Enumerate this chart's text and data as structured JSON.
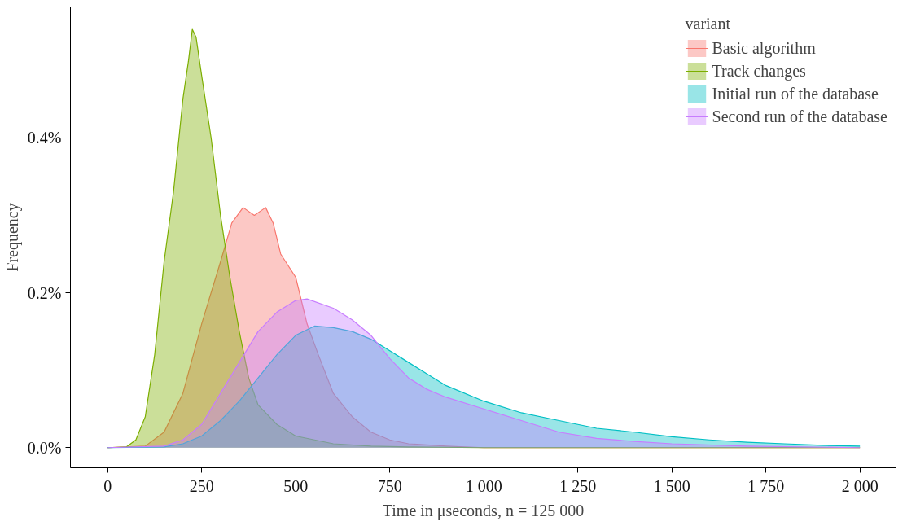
{
  "chart_data": {
    "type": "area",
    "xlabel": "Time in μseconds, n = 125 000",
    "ylabel": "Frequency",
    "legend_title": "variant",
    "legend": "top right",
    "grid": false,
    "xlim": [
      -99,
      2096
    ],
    "ylim": [
      -0.026,
      0.569
    ],
    "xticks": [
      0,
      250,
      500,
      750,
      {
        "value": 1000,
        "label": "1 000"
      },
      {
        "value": 1250,
        "label": "1 250"
      },
      {
        "value": 1500,
        "label": "1 500"
      },
      {
        "value": 1750,
        "label": "1 750"
      },
      {
        "value": 2000,
        "label": "2 000"
      }
    ],
    "yticks": [
      {
        "value": 0,
        "label": "0.0%"
      },
      {
        "value": 0.2,
        "label": "0.2%"
      },
      {
        "value": 0.4,
        "label": "0.4%"
      }
    ],
    "series": [
      {
        "name": "Basic algorithm",
        "color": "#f8766d",
        "x": [
          0,
          100,
          150,
          200,
          250,
          300,
          330,
          360,
          390,
          420,
          440,
          460,
          500,
          530,
          560,
          600,
          650,
          700,
          750,
          800,
          900,
          1000,
          2000
        ],
        "values": [
          0,
          0.002,
          0.02,
          0.07,
          0.16,
          0.24,
          0.29,
          0.31,
          0.3,
          0.31,
          0.29,
          0.25,
          0.22,
          0.16,
          0.12,
          0.07,
          0.04,
          0.02,
          0.01,
          0.005,
          0.002,
          0,
          0
        ]
      },
      {
        "name": "Track changes",
        "color": "#7cae00",
        "x": [
          0,
          50,
          75,
          100,
          125,
          150,
          175,
          200,
          215,
          225,
          235,
          250,
          275,
          300,
          325,
          350,
          375,
          400,
          450,
          500,
          600,
          700,
          800,
          1000,
          2000
        ],
        "values": [
          0,
          0.001,
          0.01,
          0.04,
          0.12,
          0.24,
          0.33,
          0.45,
          0.5,
          0.54,
          0.53,
          0.48,
          0.4,
          0.3,
          0.22,
          0.15,
          0.09,
          0.055,
          0.03,
          0.015,
          0.005,
          0.002,
          0.001,
          0,
          0
        ]
      },
      {
        "name": "Initial run of the database",
        "color": "#00bfc4",
        "x": [
          0,
          150,
          200,
          250,
          300,
          350,
          400,
          450,
          500,
          550,
          600,
          650,
          700,
          750,
          800,
          850,
          900,
          1000,
          1100,
          1200,
          1300,
          1400,
          1500,
          1600,
          1700,
          1800,
          1900,
          2000
        ],
        "values": [
          0,
          0.001,
          0.005,
          0.015,
          0.035,
          0.06,
          0.09,
          0.12,
          0.145,
          0.157,
          0.155,
          0.15,
          0.14,
          0.125,
          0.11,
          0.095,
          0.08,
          0.06,
          0.045,
          0.035,
          0.025,
          0.02,
          0.014,
          0.01,
          0.007,
          0.005,
          0.003,
          0.002
        ]
      },
      {
        "name": "Second run of the database",
        "color": "#c77cff",
        "x": [
          0,
          150,
          200,
          250,
          300,
          350,
          400,
          450,
          500,
          530,
          600,
          650,
          700,
          750,
          800,
          850,
          900,
          1000,
          1100,
          1200,
          1300,
          1400,
          1500,
          1700,
          2000
        ],
        "values": [
          0,
          0.002,
          0.01,
          0.03,
          0.07,
          0.11,
          0.15,
          0.175,
          0.19,
          0.192,
          0.18,
          0.165,
          0.145,
          0.115,
          0.09,
          0.075,
          0.065,
          0.05,
          0.035,
          0.02,
          0.012,
          0.008,
          0.005,
          0.002,
          0
        ]
      }
    ]
  }
}
